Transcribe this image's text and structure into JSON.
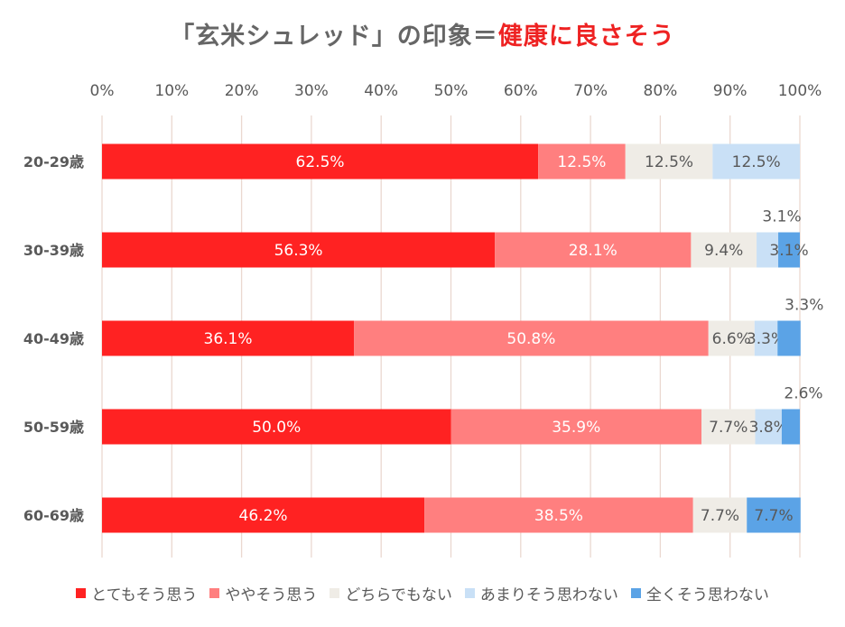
{
  "title": {
    "prefix": "「玄米シュレッド」の印象＝",
    "highlight": "健康に良さそう"
  },
  "colors": {
    "title_text": "#666666",
    "title_highlight": "#ee2222",
    "grid": "#ead8d0"
  },
  "chart_data": {
    "type": "bar",
    "orientation": "horizontal",
    "stacked": "percent",
    "xlim": [
      0,
      100
    ],
    "x_ticks": [
      "0%",
      "10%",
      "20%",
      "30%",
      "40%",
      "50%",
      "60%",
      "70%",
      "80%",
      "90%",
      "100%"
    ],
    "x_axis_position": "top",
    "grid": true,
    "legend_position": "bottom",
    "categories": [
      "20-29歳",
      "30-39歳",
      "40-49歳",
      "50-59歳",
      "60-69歳"
    ],
    "series": [
      {
        "name": "とてもそう思う",
        "color": "#ff2222",
        "label_color": "#ffffff",
        "values": [
          62.5,
          56.3,
          36.1,
          50.0,
          46.2
        ],
        "labels": [
          "62.5%",
          "56.3%",
          "36.1%",
          "50.0%",
          "46.2%"
        ]
      },
      {
        "name": "ややそう思う",
        "color": "#ff7f7f",
        "label_color": "#ffffff",
        "values": [
          12.5,
          28.1,
          50.8,
          35.9,
          38.5
        ],
        "labels": [
          "12.5%",
          "28.1%",
          "50.8%",
          "35.9%",
          "38.5%"
        ]
      },
      {
        "name": "どちらでもない",
        "color": "#efece6",
        "label_color": "#595959",
        "values": [
          12.5,
          9.4,
          6.6,
          7.7,
          7.7
        ],
        "labels": [
          "12.5%",
          "9.4%",
          "6.6%",
          "7.7%",
          "7.7%"
        ]
      },
      {
        "name": "あまりそう思わない",
        "color": "#c9e0f6",
        "label_color": "#595959",
        "values": [
          12.5,
          3.1,
          3.3,
          3.8,
          0
        ],
        "labels": [
          "12.5%",
          "3.1%",
          "3.3%",
          "3.8%",
          ""
        ]
      },
      {
        "name": "全くそう思わない",
        "color": "#5ba3e6",
        "label_color": "#595959",
        "values": [
          0,
          3.1,
          3.3,
          2.6,
          7.7
        ],
        "labels": [
          "",
          "3.1%",
          "3.3%",
          "2.6%",
          "7.7%"
        ]
      }
    ],
    "outside_labels": [
      {
        "row": 1,
        "series": 3,
        "text": "3.1%"
      },
      {
        "row": 2,
        "series": 4,
        "text": "3.3%"
      },
      {
        "row": 3,
        "series": 4,
        "text": "2.6%"
      }
    ]
  }
}
